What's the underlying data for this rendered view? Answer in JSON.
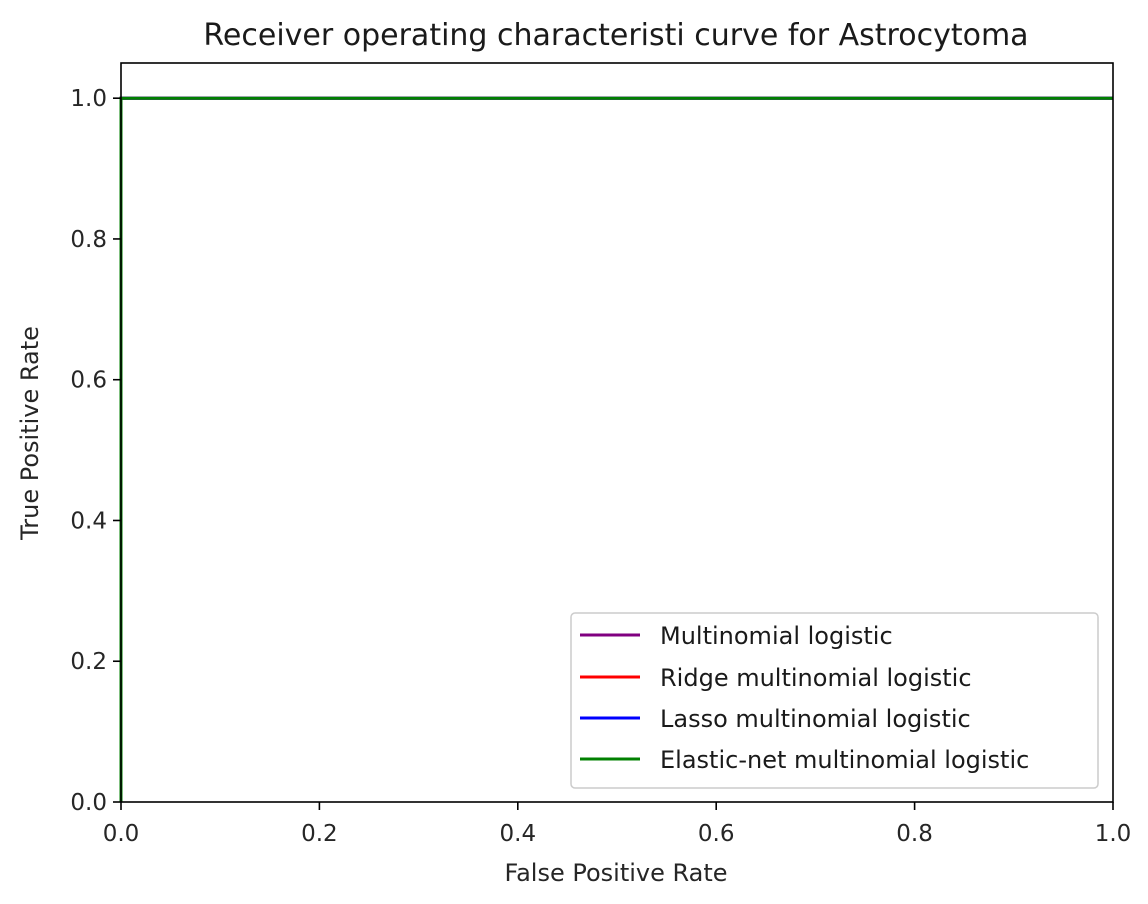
{
  "chart_data": {
    "type": "line",
    "title": "Receiver operating characteristi curve for Astrocytoma",
    "xlabel": "False Positive Rate",
    "ylabel": "True Positive Rate",
    "xlim": [
      0.0,
      1.0
    ],
    "ylim": [
      0.0,
      1.05
    ],
    "xticks": [
      0.0,
      0.2,
      0.4,
      0.6,
      0.8,
      1.0
    ],
    "yticks": [
      0.0,
      0.2,
      0.4,
      0.6,
      0.8,
      1.0
    ],
    "xtick_labels": [
      "0.0",
      "0.2",
      "0.4",
      "0.6",
      "0.8",
      "1.0"
    ],
    "ytick_labels": [
      "0.0",
      "0.2",
      "0.4",
      "0.6",
      "0.8",
      "1.0"
    ],
    "grid": false,
    "legend_position": "lower-right",
    "series": [
      {
        "name": "Multinomial logistic",
        "color": "#800080",
        "x": [
          0.0,
          0.0,
          1.0
        ],
        "y": [
          0.0,
          1.0,
          1.0
        ]
      },
      {
        "name": "Ridge multinomial logistic",
        "color": "#ff0000",
        "x": [
          0.0,
          0.0,
          1.0
        ],
        "y": [
          0.0,
          1.0,
          1.0
        ]
      },
      {
        "name": "Lasso multinomial logistic",
        "color": "#0000ff",
        "x": [
          0.0,
          0.0,
          1.0
        ],
        "y": [
          0.0,
          1.0,
          1.0
        ]
      },
      {
        "name": "Elastic-net multinomial logistic",
        "color": "#008000",
        "x": [
          0.0,
          0.0,
          1.0
        ],
        "y": [
          0.0,
          1.0,
          1.0
        ]
      }
    ]
  }
}
